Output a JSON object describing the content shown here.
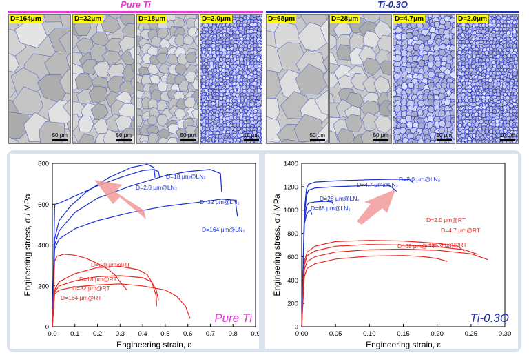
{
  "headers": {
    "left": {
      "label": "Pure Ti",
      "color": "#e838d6"
    },
    "right": {
      "label": "Ti-0.3O",
      "color": "#2030a8"
    }
  },
  "micrographs": [
    {
      "label": "D=164μm",
      "scale": "50 μm",
      "style": "gray-coarse"
    },
    {
      "label": "D=32μm",
      "scale": "50 μm",
      "style": "gray-medium"
    },
    {
      "label": "D=18μm",
      "scale": "50 μm",
      "style": "gray-fine"
    },
    {
      "label": "D=2.0μm",
      "scale": "10 μm",
      "style": "blue-ultrafine"
    },
    {
      "label": "D=68μm",
      "scale": "50 μm",
      "style": "gray-coarse"
    },
    {
      "label": "D=28μm",
      "scale": "50 μm",
      "style": "gray-medium"
    },
    {
      "label": "D=4.7μm",
      "scale": "50 μm",
      "style": "blue-fine"
    },
    {
      "label": "D=2.0μm",
      "scale": "10 μm",
      "style": "blue-ultrafine"
    }
  ],
  "chart_data": [
    {
      "type": "line",
      "title": "Pure Ti",
      "xlabel": "Engineering strain, ε",
      "ylabel": "Engineering stress, σ / MPa",
      "xlim": [
        0,
        0.9
      ],
      "ylim": [
        0,
        800
      ],
      "xticks": [
        "0.0",
        "0.1",
        "0.2",
        "0.3",
        "0.4",
        "0.5",
        "0.6",
        "0.7",
        "0.8",
        "0.9"
      ],
      "yticks": [
        "0",
        "200",
        "400",
        "600",
        "800"
      ],
      "series": [
        {
          "name": "D=18 μm@LN₂",
          "color": "#1a2fd0",
          "x": [
            0,
            0.01,
            0.03,
            0.08,
            0.15,
            0.25,
            0.35,
            0.42,
            0.45,
            0.455
          ],
          "y": [
            0,
            430,
            520,
            590,
            660,
            730,
            780,
            795,
            780,
            730
          ]
        },
        {
          "name": "D=2.0 μm@LN₂",
          "color": "#1a2fd0",
          "x": [
            0,
            0.01,
            0.012,
            0.03,
            0.1,
            0.2,
            0.3,
            0.4,
            0.45,
            0.47,
            0.475
          ],
          "y": [
            0,
            580,
            600,
            605,
            640,
            690,
            730,
            765,
            770,
            760,
            730
          ]
        },
        {
          "name": "D=32 μm@LN₂",
          "color": "#1a2fd0",
          "x": [
            0,
            0.01,
            0.03,
            0.1,
            0.2,
            0.35,
            0.5,
            0.6,
            0.7,
            0.745,
            0.75
          ],
          "y": [
            0,
            400,
            470,
            560,
            630,
            690,
            740,
            760,
            770,
            750,
            660
          ]
        },
        {
          "name": "D=164 μm@LN₂",
          "color": "#1a2fd0",
          "x": [
            0,
            0.01,
            0.03,
            0.1,
            0.2,
            0.35,
            0.5,
            0.65,
            0.75,
            0.81,
            0.82
          ],
          "y": [
            0,
            380,
            430,
            480,
            520,
            560,
            590,
            610,
            625,
            620,
            540
          ]
        },
        {
          "name": "D=2.0 μm@RT",
          "color": "#e8261f",
          "x": [
            0,
            0.01,
            0.02,
            0.05,
            0.1,
            0.15,
            0.2,
            0.25,
            0.28,
            0.3,
            0.33
          ],
          "y": [
            0,
            320,
            345,
            355,
            350,
            335,
            310,
            280,
            250,
            220,
            180
          ]
        },
        {
          "name": "D=18 μm@RT",
          "color": "#e8261f",
          "x": [
            0,
            0.01,
            0.03,
            0.1,
            0.2,
            0.3,
            0.38,
            0.42,
            0.44,
            0.46,
            0.462
          ],
          "y": [
            0,
            180,
            220,
            260,
            290,
            295,
            280,
            255,
            220,
            150,
            100
          ]
        },
        {
          "name": "D=32 μm@RT",
          "color": "#e8261f",
          "x": [
            0,
            0.01,
            0.03,
            0.1,
            0.2,
            0.3,
            0.4,
            0.44,
            0.46,
            0.47
          ],
          "y": [
            0,
            170,
            200,
            225,
            245,
            250,
            240,
            220,
            180,
            130
          ]
        },
        {
          "name": "D=164 μm@RT",
          "color": "#e8261f",
          "x": [
            0,
            0.01,
            0.03,
            0.1,
            0.2,
            0.3,
            0.4,
            0.5,
            0.55,
            0.59,
            0.61
          ],
          "y": [
            0,
            160,
            180,
            195,
            205,
            210,
            200,
            180,
            150,
            100,
            40
          ]
        }
      ],
      "annotations": [
        "D=18 μm@LN₂",
        "D=2.0 μm@LN₂",
        "D=32 μm@LN₂",
        "D=164 μm@LN₂",
        "D=2.0 μm@RT",
        "D=18 μm@RT",
        "D=32 μm@RT",
        "D=164 μm@RT"
      ],
      "panel_label": "Pure Ti",
      "panel_label_color": "#e838d6"
    },
    {
      "type": "line",
      "title": "Ti-0.3O",
      "xlabel": "Engineering strain, ε",
      "ylabel": "Engineering stress, σ / MPa",
      "xlim": [
        0,
        0.3
      ],
      "ylim": [
        0,
        1400
      ],
      "xticks": [
        "0.00",
        "0.05",
        "0.10",
        "0.15",
        "0.20",
        "0.25",
        "0.30"
      ],
      "yticks": [
        "0",
        "200",
        "400",
        "600",
        "800",
        "1000",
        "1200",
        "1400"
      ],
      "series": [
        {
          "name": "D=2.0 μm@LN₂",
          "color": "#1a2fd0",
          "x": [
            0,
            0.004,
            0.007,
            0.01,
            0.02,
            0.05,
            0.1,
            0.14,
            0.16,
            0.165
          ],
          "y": [
            0,
            1000,
            1180,
            1220,
            1240,
            1250,
            1260,
            1265,
            1260,
            1230
          ]
        },
        {
          "name": "D=4.7 μm@LN₂",
          "color": "#1a2fd0",
          "x": [
            0,
            0.004,
            0.007,
            0.01,
            0.02,
            0.05,
            0.1,
            0.13,
            0.14
          ],
          "y": [
            0,
            950,
            1120,
            1170,
            1190,
            1200,
            1210,
            1210,
            1160
          ]
        },
        {
          "name": "D=28 μm@LN₂",
          "color": "#1a2fd0",
          "x": [
            0,
            0.004,
            0.007,
            0.01,
            0.02,
            0.035,
            0.045,
            0.047
          ],
          "y": [
            0,
            900,
            1030,
            1060,
            1070,
            1075,
            1070,
            1040
          ]
        },
        {
          "name": "D=68 μm@LN₂",
          "color": "#1a2fd0",
          "x": [
            0,
            0.004,
            0.007,
            0.01,
            0.013,
            0.015
          ],
          "y": [
            0,
            880,
            960,
            990,
            1000,
            960
          ]
        },
        {
          "name": "D=2.0 μm@RT",
          "color": "#e8261f",
          "x": [
            0,
            0.004,
            0.008,
            0.02,
            0.05,
            0.1,
            0.15,
            0.2,
            0.23,
            0.24
          ],
          "y": [
            0,
            560,
            640,
            690,
            730,
            740,
            735,
            715,
            690,
            650
          ]
        },
        {
          "name": "D=4.7 μm@RT",
          "color": "#e8261f",
          "x": [
            0,
            0.004,
            0.008,
            0.02,
            0.05,
            0.1,
            0.15,
            0.2,
            0.24,
            0.26
          ],
          "y": [
            0,
            530,
            610,
            650,
            690,
            705,
            700,
            685,
            660,
            620
          ]
        },
        {
          "name": "D=28 μm@RT",
          "color": "#e8261f",
          "x": [
            0,
            0.004,
            0.008,
            0.02,
            0.05,
            0.1,
            0.15,
            0.2,
            0.25,
            0.275
          ],
          "y": [
            0,
            490,
            560,
            600,
            640,
            660,
            665,
            655,
            625,
            575
          ]
        },
        {
          "name": "D=68 μm@RT",
          "color": "#e8261f",
          "x": [
            0,
            0.004,
            0.008,
            0.02,
            0.05,
            0.1,
            0.15,
            0.18,
            0.2,
            0.215
          ],
          "y": [
            0,
            430,
            500,
            540,
            580,
            605,
            610,
            600,
            585,
            560
          ]
        }
      ],
      "annotations": [
        "D=2.0 μm@LN₂",
        "D=4.7 μm@LN₂",
        "D=28 μm@LN₂",
        "D=68 μm@LN₂",
        "D=2.0 μm@RT",
        "D=4.7 μm@RT",
        "D=28 μm@RT",
        "D=68 μm@RT"
      ],
      "panel_label": "Ti-0.3O",
      "panel_label_color": "#2030a8"
    }
  ]
}
